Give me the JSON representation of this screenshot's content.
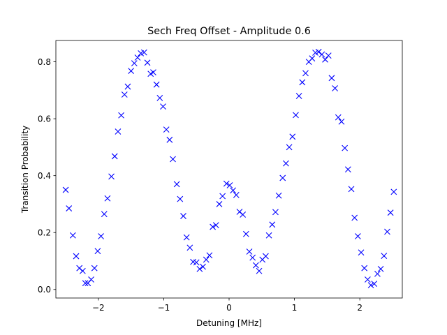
{
  "chart_data": {
    "type": "scatter",
    "title": "Sech Freq Offset - Amplitude 0.6",
    "xlabel": "Detuning [MHz]",
    "ylabel": "Transition Probability",
    "xlim": [
      -2.65,
      2.65
    ],
    "ylim": [
      -0.03,
      0.875
    ],
    "xticks": [
      -2,
      -1,
      0,
      1,
      2
    ],
    "xtick_labels": [
      "−2",
      "−1",
      "0",
      "1",
      "2"
    ],
    "yticks": [
      0.0,
      0.2,
      0.4,
      0.6,
      0.8
    ],
    "ytick_labels": [
      "0.0",
      "0.2",
      "0.4",
      "0.6",
      "0.8"
    ],
    "grid": false,
    "marker": "x",
    "color": "#0000ff",
    "series": [
      {
        "x": [
          -2.5,
          -2.45,
          -2.39,
          -2.34,
          -2.29,
          -2.24,
          -2.2,
          -2.16,
          -2.11,
          -2.06,
          -2.01,
          -1.96,
          -1.91,
          -1.86,
          -1.8,
          -1.75,
          -1.7,
          -1.65,
          -1.6,
          -1.55,
          -1.5,
          -1.45,
          -1.4,
          -1.35,
          -1.3,
          -1.25,
          -1.2,
          -1.16,
          -1.11,
          -1.06,
          -1.01,
          -0.96,
          -0.91,
          -0.86,
          -0.8,
          -0.75,
          -0.7,
          -0.65,
          -0.6,
          -0.55,
          -0.5,
          -0.45,
          -0.4,
          -0.35,
          -0.3,
          -0.25,
          -0.2,
          -0.15,
          -0.1,
          -0.04,
          0.01,
          0.06,
          0.11,
          0.16,
          0.21,
          0.26,
          0.31,
          0.36,
          0.41,
          0.46,
          0.51,
          0.56,
          0.61,
          0.66,
          0.71,
          0.76,
          0.82,
          0.87,
          0.92,
          0.97,
          1.02,
          1.07,
          1.12,
          1.17,
          1.22,
          1.27,
          1.32,
          1.37,
          1.42,
          1.47,
          1.52,
          1.57,
          1.62,
          1.67,
          1.72,
          1.77,
          1.82,
          1.87,
          1.92,
          1.97,
          2.02,
          2.07,
          2.12,
          2.17,
          2.22,
          2.27,
          2.32,
          2.37,
          2.42,
          2.47,
          2.52
        ],
        "y": [
          0.35,
          0.285,
          0.19,
          0.117,
          0.075,
          0.065,
          0.022,
          0.022,
          0.035,
          0.075,
          0.135,
          0.187,
          0.265,
          0.32,
          0.397,
          0.468,
          0.555,
          0.612,
          0.685,
          0.713,
          0.768,
          0.795,
          0.815,
          0.83,
          0.833,
          0.797,
          0.758,
          0.763,
          0.72,
          0.673,
          0.643,
          0.562,
          0.526,
          0.458,
          0.37,
          0.318,
          0.258,
          0.183,
          0.147,
          0.097,
          0.095,
          0.072,
          0.08,
          0.105,
          0.12,
          0.22,
          0.226,
          0.3,
          0.328,
          0.372,
          0.366,
          0.348,
          0.332,
          0.273,
          0.263,
          0.195,
          0.133,
          0.112,
          0.085,
          0.065,
          0.105,
          0.117,
          0.19,
          0.228,
          0.272,
          0.33,
          0.392,
          0.443,
          0.5,
          0.537,
          0.613,
          0.68,
          0.728,
          0.76,
          0.8,
          0.812,
          0.832,
          0.835,
          0.826,
          0.808,
          0.822,
          0.743,
          0.707,
          0.605,
          0.59,
          0.497,
          0.422,
          0.353,
          0.252,
          0.187,
          0.13,
          0.075,
          0.035,
          0.015,
          0.02,
          0.055,
          0.072,
          0.118,
          0.203,
          0.27,
          0.343
        ]
      }
    ]
  }
}
